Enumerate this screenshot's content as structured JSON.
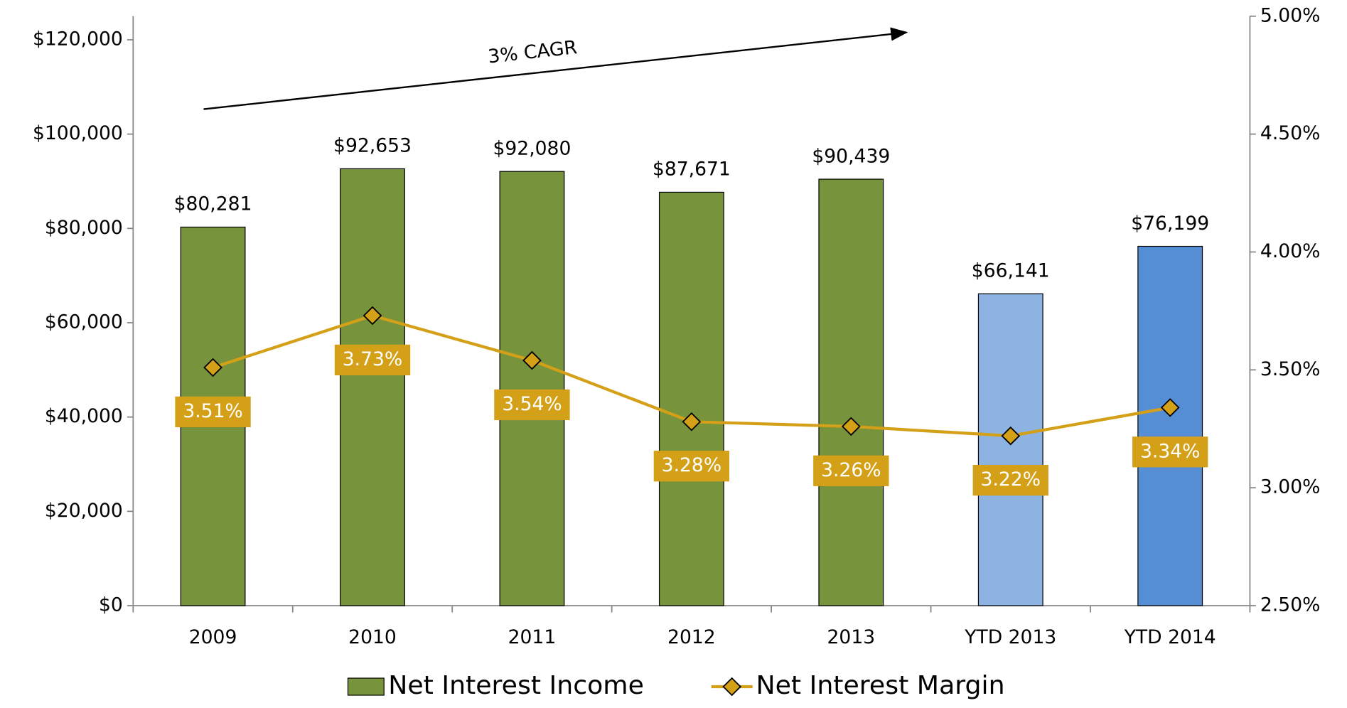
{
  "chart_data": {
    "type": "bar_line",
    "categories": [
      "2009",
      "2010",
      "2011",
      "2012",
      "2013",
      "YTD 2013",
      "YTD 2014"
    ],
    "series": [
      {
        "name": "Net Interest Income",
        "type": "bar",
        "colors": [
          "#77933c",
          "#77933c",
          "#77933c",
          "#77933c",
          "#77933c",
          "#8db3e2",
          "#558ed5"
        ],
        "values": [
          80281,
          92653,
          92080,
          87671,
          90439,
          66141,
          76199
        ],
        "value_labels": [
          "$80,281",
          "$92,653",
          "$92,080",
          "$87,671",
          "$90,439",
          "$66,141",
          "$76,199"
        ]
      },
      {
        "name": "Net Interest Margin",
        "type": "line",
        "axis": "y2",
        "color": "#d4a017",
        "values": [
          3.51,
          3.73,
          3.54,
          3.28,
          3.26,
          3.22,
          3.34
        ],
        "value_labels": [
          "3.51%",
          "3.73%",
          "3.54%",
          "3.28%",
          "3.26%",
          "3.22%",
          "3.34%"
        ]
      }
    ],
    "ylim": [
      0,
      125000
    ],
    "yticks": [
      {
        "value": 0,
        "label": "$0"
      },
      {
        "value": 20000,
        "label": "$20,000"
      },
      {
        "value": 40000,
        "label": "$40,000"
      },
      {
        "value": 60000,
        "label": "$60,000"
      },
      {
        "value": 80000,
        "label": "$80,000"
      },
      {
        "value": 100000,
        "label": "$100,000"
      },
      {
        "value": 120000,
        "label": "$120,000"
      }
    ],
    "y2lim": [
      2.5,
      5.0
    ],
    "y2ticks": [
      {
        "value": 2.5,
        "label": "2.50%"
      },
      {
        "value": 3.0,
        "label": "3.00%"
      },
      {
        "value": 3.5,
        "label": "3.50%"
      },
      {
        "value": 4.0,
        "label": "4.00%"
      },
      {
        "value": 4.5,
        "label": "4.50%"
      },
      {
        "value": 5.0,
        "label": "5.00%"
      }
    ],
    "annotations": [
      {
        "text": "3% CAGR"
      }
    ],
    "legend": "bottom"
  }
}
